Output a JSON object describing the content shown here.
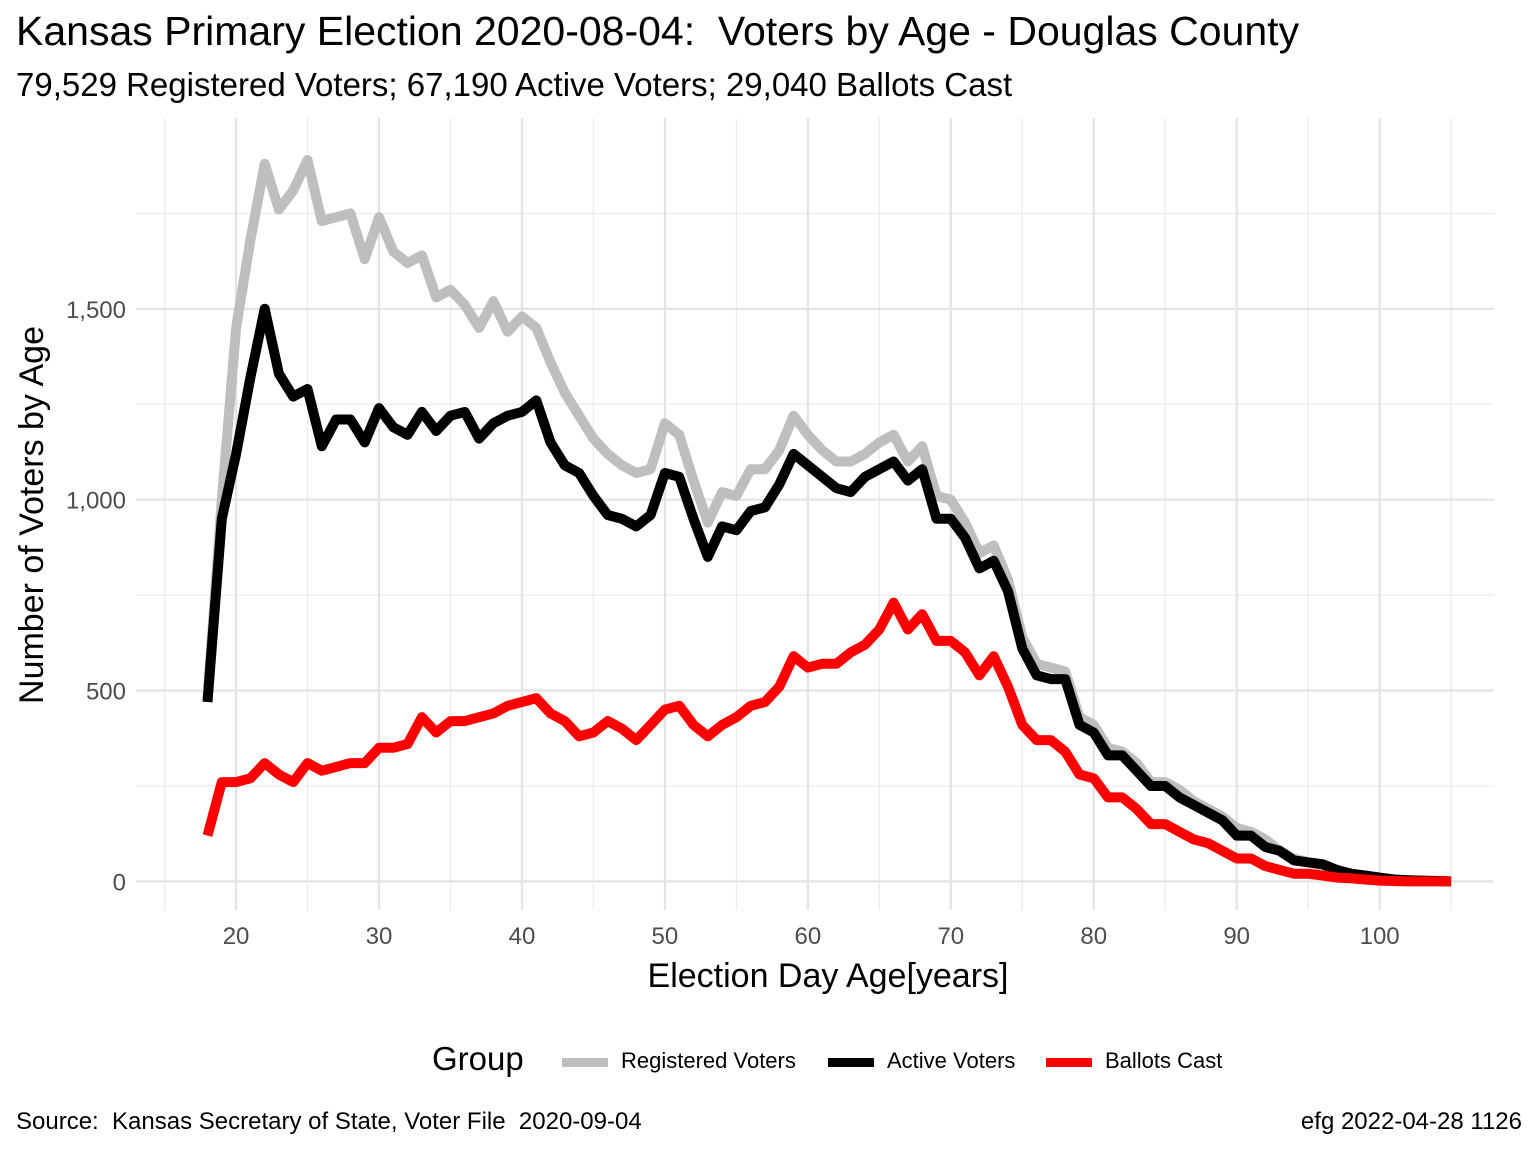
{
  "title": "Kansas Primary Election 2020-08-04:  Voters by Age - Douglas County",
  "subtitle": "79,529 Registered Voters; 67,190 Active Voters; 29,040 Ballots Cast",
  "caption_left": "Source:  Kansas Secretary of State, Voter File  2020-09-04",
  "caption_right": "efg 2022-04-28 1126",
  "legend": {
    "title": "Group",
    "items": [
      {
        "label": "Registered Voters",
        "color": "#bebebe"
      },
      {
        "label": "Active Voters",
        "color": "#000000"
      },
      {
        "label": "Ballots Cast",
        "color": "#ff0000"
      }
    ]
  },
  "chart_data": {
    "type": "line",
    "title": "Kansas Primary Election 2020-08-04:  Voters by Age - Douglas County",
    "subtitle": "79,529 Registered Voters; 67,190 Active Voters; 29,040 Ballots Cast",
    "xlabel": "Election Day Age[years]",
    "ylabel": "Number of Voters by Age",
    "xlim": [
      13,
      108
    ],
    "ylim": [
      -75,
      2000
    ],
    "x_ticks": [
      20,
      30,
      40,
      50,
      60,
      70,
      80,
      90,
      100
    ],
    "x_tick_labels": [
      "20",
      "30",
      "40",
      "50",
      "60",
      "70",
      "80",
      "90",
      "100"
    ],
    "y_ticks": [
      0,
      500,
      1000,
      1500
    ],
    "y_tick_labels": [
      "0",
      "500",
      "1,000",
      "1,500"
    ],
    "grid": true,
    "legend_position": "bottom",
    "x": [
      18,
      19,
      20,
      21,
      22,
      23,
      24,
      25,
      26,
      27,
      28,
      29,
      30,
      31,
      32,
      33,
      34,
      35,
      36,
      37,
      38,
      39,
      40,
      41,
      42,
      43,
      44,
      45,
      46,
      47,
      48,
      49,
      50,
      51,
      52,
      53,
      54,
      55,
      56,
      57,
      58,
      59,
      60,
      61,
      62,
      63,
      64,
      65,
      66,
      67,
      68,
      69,
      70,
      71,
      72,
      73,
      74,
      75,
      76,
      77,
      78,
      79,
      80,
      81,
      82,
      83,
      84,
      85,
      86,
      87,
      88,
      89,
      90,
      91,
      92,
      93,
      94,
      95,
      96,
      97,
      98,
      99,
      100,
      101,
      102,
      103,
      104,
      105
    ],
    "series": [
      {
        "name": "Registered Voters",
        "color": "#bebebe",
        "values": [
          480,
          1000,
          1450,
          1680,
          1880,
          1760,
          1810,
          1890,
          1730,
          1740,
          1750,
          1630,
          1740,
          1650,
          1620,
          1640,
          1530,
          1550,
          1510,
          1450,
          1520,
          1440,
          1480,
          1450,
          1360,
          1280,
          1220,
          1160,
          1120,
          1090,
          1070,
          1080,
          1200,
          1170,
          1050,
          940,
          1020,
          1010,
          1080,
          1080,
          1130,
          1220,
          1170,
          1130,
          1100,
          1100,
          1120,
          1150,
          1170,
          1100,
          1140,
          1010,
          1000,
          940,
          860,
          880,
          790,
          640,
          570,
          560,
          550,
          430,
          410,
          350,
          340,
          310,
          260,
          260,
          240,
          210,
          190,
          170,
          140,
          130,
          110,
          80,
          60,
          50,
          40,
          30,
          20,
          15,
          10,
          5,
          3,
          2,
          1,
          0
        ]
      },
      {
        "name": "Active Voters",
        "color": "#000000",
        "values": [
          470,
          950,
          1120,
          1320,
          1500,
          1330,
          1270,
          1290,
          1140,
          1210,
          1210,
          1150,
          1240,
          1190,
          1170,
          1230,
          1180,
          1220,
          1230,
          1160,
          1200,
          1220,
          1230,
          1260,
          1150,
          1090,
          1070,
          1010,
          960,
          950,
          930,
          960,
          1070,
          1060,
          950,
          850,
          930,
          920,
          970,
          980,
          1040,
          1120,
          1090,
          1060,
          1030,
          1020,
          1060,
          1080,
          1100,
          1050,
          1080,
          950,
          950,
          900,
          820,
          840,
          760,
          610,
          540,
          530,
          530,
          410,
          390,
          330,
          330,
          290,
          250,
          250,
          220,
          200,
          180,
          160,
          120,
          120,
          90,
          80,
          55,
          50,
          45,
          30,
          20,
          15,
          10,
          5,
          3,
          2,
          1,
          0
        ]
      },
      {
        "name": "Ballots Cast",
        "color": "#ff0000",
        "values": [
          120,
          260,
          260,
          270,
          310,
          280,
          260,
          310,
          290,
          300,
          310,
          310,
          350,
          350,
          360,
          430,
          390,
          420,
          420,
          430,
          440,
          460,
          470,
          480,
          440,
          420,
          380,
          390,
          420,
          400,
          370,
          410,
          450,
          460,
          410,
          380,
          410,
          430,
          460,
          470,
          510,
          590,
          560,
          570,
          570,
          600,
          620,
          660,
          730,
          660,
          700,
          630,
          630,
          600,
          540,
          590,
          510,
          410,
          370,
          370,
          340,
          280,
          270,
          220,
          220,
          190,
          150,
          150,
          130,
          110,
          100,
          80,
          60,
          60,
          40,
          30,
          20,
          20,
          15,
          10,
          8,
          5,
          2,
          1,
          0,
          0,
          0,
          0
        ]
      }
    ]
  }
}
